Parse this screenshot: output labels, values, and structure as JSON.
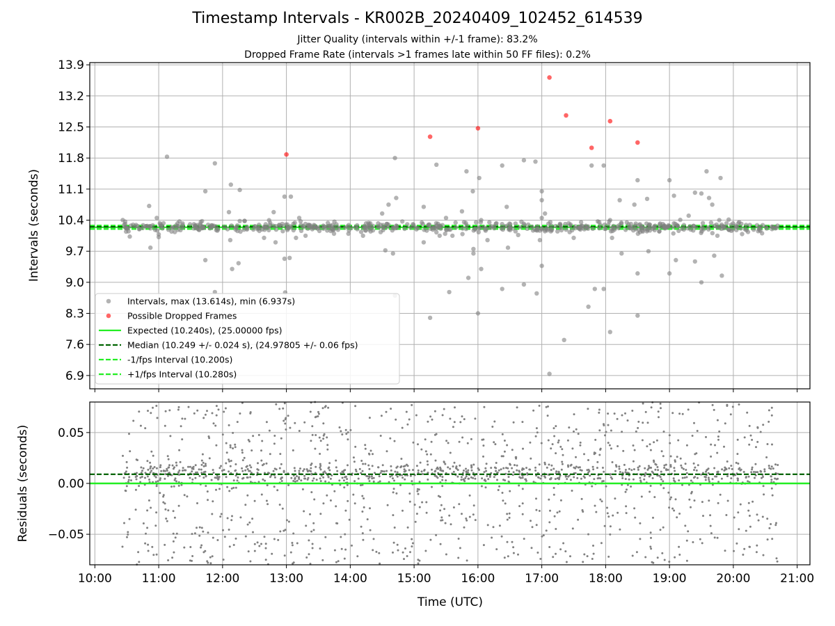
{
  "title": "Timestamp Intervals - KR002B_20240409_102452_614539",
  "subtitle_jitter": "Jitter Quality (intervals within +/-1 frame): 83.2%",
  "subtitle_dropped": "Dropped Frame Rate (intervals >1 frames late within 50 FF files): 0.2%",
  "colors": {
    "intervals": "#808080",
    "dropped": "#ff0000",
    "expected": "#22ee22",
    "median": "#006400",
    "fps_bounds": "#22ee22",
    "grid": "#b0b0b0"
  },
  "chart_data": [
    {
      "type": "scatter",
      "panel": "intervals",
      "ylabel": "Intervals (seconds)",
      "xlabel": "",
      "xlim_hours": [
        9.92,
        21.2
      ],
      "ylim": [
        6.6,
        13.95
      ],
      "yticks": [
        "6.9",
        "7.6",
        "8.3",
        "9.0",
        "9.7",
        "10.4",
        "11.1",
        "11.8",
        "12.5",
        "13.2",
        "13.9"
      ],
      "ytick_values": [
        6.9,
        7.6,
        8.3,
        9.0,
        9.7,
        10.4,
        11.1,
        11.8,
        12.5,
        13.2,
        13.9
      ],
      "xtick_values": [
        10,
        11,
        12,
        13,
        14,
        15,
        16,
        17,
        18,
        19,
        20,
        21
      ],
      "legend_position": "lower-left",
      "legend": [
        {
          "label": "Intervals, max (13.614s), min (6.937s)",
          "kind": "dot-gray"
        },
        {
          "label": "Possible Dropped Frames",
          "kind": "dot-red"
        },
        {
          "label": "Expected (10.240s), (25.00000 fps)",
          "kind": "solid-green"
        },
        {
          "label": "Median (10.249 +/- 0.024 s), (24.97805 +/- 0.06 fps)",
          "kind": "dashed-darkgreen"
        },
        {
          "label": "-1/fps Interval (10.200s)",
          "kind": "dashed-green"
        },
        {
          "label": "+1/fps Interval (10.280s)",
          "kind": "dashed-green"
        }
      ],
      "expected": 10.24,
      "median": 10.249,
      "lower_fps_interval": 10.2,
      "upper_fps_interval": 10.28,
      "dense_band": {
        "start_hour": 10.43,
        "end_hour": 20.7,
        "center": 10.24,
        "spread": 0.1
      },
      "outliers": [
        [
          10.85,
          10.72
        ],
        [
          10.87,
          9.78
        ],
        [
          10.97,
          10.45
        ],
        [
          11.0,
          10.02
        ],
        [
          11.0,
          10.08
        ],
        [
          11.13,
          11.83
        ],
        [
          11.73,
          11.05
        ],
        [
          11.73,
          9.5
        ],
        [
          11.88,
          11.68
        ],
        [
          11.88,
          8.78
        ],
        [
          12.1,
          10.58
        ],
        [
          12.12,
          9.95
        ],
        [
          12.13,
          11.2
        ],
        [
          12.15,
          9.3
        ],
        [
          12.25,
          9.43
        ],
        [
          12.27,
          11.08
        ],
        [
          12.27,
          10.38
        ],
        [
          12.65,
          10.0
        ],
        [
          12.8,
          10.58
        ],
        [
          12.83,
          9.9
        ],
        [
          12.97,
          10.93
        ],
        [
          12.97,
          9.53
        ],
        [
          12.98,
          8.77
        ],
        [
          13.05,
          9.55
        ],
        [
          13.07,
          10.93
        ],
        [
          13.15,
          10.0
        ],
        [
          13.2,
          10.45
        ],
        [
          13.3,
          10.05
        ],
        [
          14.2,
          10.05
        ],
        [
          14.5,
          10.55
        ],
        [
          14.55,
          9.72
        ],
        [
          14.6,
          10.75
        ],
        [
          14.67,
          9.65
        ],
        [
          14.7,
          11.8
        ],
        [
          14.7,
          8.7
        ],
        [
          14.72,
          10.9
        ],
        [
          15.15,
          10.7
        ],
        [
          15.15,
          9.9
        ],
        [
          15.35,
          11.65
        ],
        [
          15.4,
          10.05
        ],
        [
          15.5,
          10.45
        ],
        [
          15.55,
          8.78
        ],
        [
          15.6,
          10.05
        ],
        [
          15.75,
          10.6
        ],
        [
          15.82,
          11.5
        ],
        [
          15.85,
          9.1
        ],
        [
          15.92,
          11.05
        ],
        [
          15.93,
          9.65
        ],
        [
          15.93,
          9.75
        ],
        [
          15.97,
          10.35
        ],
        [
          16.02,
          11.35
        ],
        [
          16.05,
          9.3
        ],
        [
          16.05,
          10.4
        ],
        [
          16.15,
          9.95
        ],
        [
          16.38,
          11.63
        ],
        [
          16.38,
          8.85
        ],
        [
          16.45,
          10.7
        ],
        [
          16.47,
          9.78
        ],
        [
          16.72,
          11.75
        ],
        [
          16.72,
          8.95
        ],
        [
          16.9,
          11.72
        ],
        [
          16.92,
          8.75
        ],
        [
          16.97,
          9.95
        ],
        [
          17.0,
          10.85
        ],
        [
          17.0,
          10.45
        ],
        [
          17.0,
          9.37
        ],
        [
          17.0,
          11.05
        ],
        [
          17.05,
          10.15
        ],
        [
          17.05,
          10.55
        ],
        [
          17.5,
          10.0
        ],
        [
          17.78,
          11.63
        ],
        [
          17.83,
          8.85
        ],
        [
          17.97,
          11.63
        ],
        [
          17.97,
          8.85
        ],
        [
          18.07,
          10.4
        ],
        [
          18.1,
          10.0
        ],
        [
          18.22,
          10.85
        ],
        [
          18.25,
          9.65
        ],
        [
          18.45,
          10.75
        ],
        [
          18.5,
          11.3
        ],
        [
          18.5,
          9.2
        ],
        [
          18.65,
          10.88
        ],
        [
          18.67,
          9.7
        ],
        [
          19.0,
          11.3
        ],
        [
          19.0,
          9.2
        ],
        [
          19.07,
          10.95
        ],
        [
          19.1,
          9.5
        ],
        [
          19.3,
          10.5
        ],
        [
          19.4,
          11.02
        ],
        [
          19.4,
          9.47
        ],
        [
          19.5,
          11.0
        ],
        [
          19.5,
          9.0
        ],
        [
          19.58,
          11.5
        ],
        [
          19.62,
          10.9
        ],
        [
          19.67,
          10.75
        ],
        [
          19.7,
          9.6
        ],
        [
          19.8,
          11.35
        ],
        [
          19.82,
          9.15
        ],
        [
          19.78,
          10.4
        ],
        [
          19.75,
          10.05
        ]
      ],
      "extra_low": [
        [
          15.25,
          8.2
        ],
        [
          16.0,
          8.3
        ],
        [
          17.35,
          7.7
        ],
        [
          17.73,
          8.45
        ],
        [
          18.07,
          7.88
        ],
        [
          18.5,
          8.25
        ],
        [
          17.12,
          6.937
        ]
      ],
      "dropped_frames": [
        [
          13.0,
          11.88
        ],
        [
          15.25,
          12.28
        ],
        [
          16.0,
          12.47
        ],
        [
          17.12,
          13.614
        ],
        [
          17.38,
          12.76
        ],
        [
          17.78,
          12.03
        ],
        [
          18.07,
          12.63
        ],
        [
          18.5,
          12.15
        ]
      ]
    },
    {
      "type": "scatter",
      "panel": "residuals",
      "ylabel": "Residuals (seconds)",
      "xlabel": "Time (UTC)",
      "xlim_hours": [
        9.92,
        21.2
      ],
      "ylim": [
        -0.08,
        0.08
      ],
      "yticks": [
        "−0.05",
        "0.00",
        "0.05"
      ],
      "ytick_values": [
        -0.05,
        0.0,
        0.05
      ],
      "xticks": [
        "10:00",
        "11:00",
        "12:00",
        "13:00",
        "14:00",
        "15:00",
        "16:00",
        "17:00",
        "18:00",
        "19:00",
        "20:00",
        "21:00"
      ],
      "xtick_values": [
        10,
        11,
        12,
        13,
        14,
        15,
        16,
        17,
        18,
        19,
        20,
        21
      ],
      "expected_residual": 0.0,
      "median_residual": 0.009,
      "dense_band": {
        "start_hour": 10.43,
        "end_hour": 20.7,
        "center": 0.009,
        "spread": 0.08
      }
    }
  ]
}
